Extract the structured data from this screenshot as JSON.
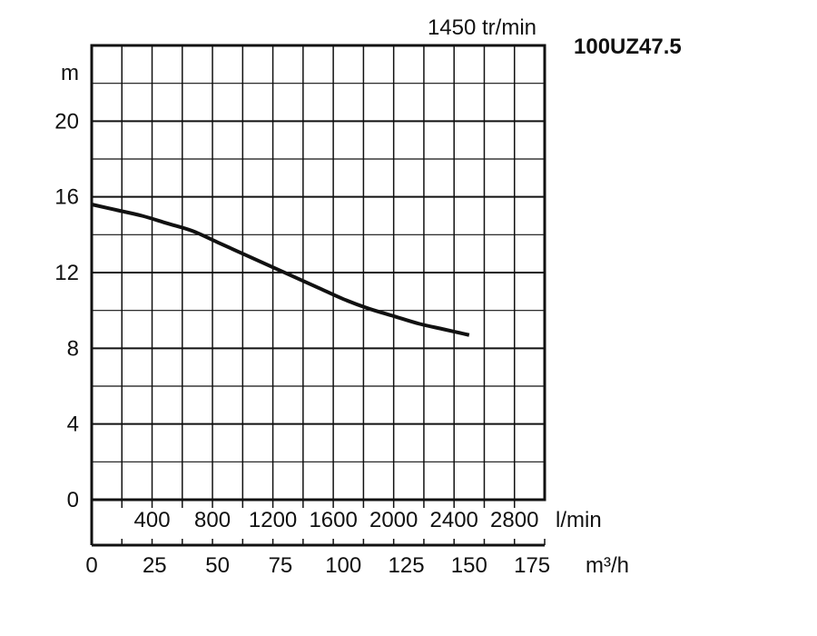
{
  "chart_data": {
    "type": "line",
    "title": "100UZ47.5",
    "subtitle": "1450 tr/min",
    "ylabel": "m",
    "ylim": [
      0,
      24
    ],
    "y_ticks": [
      "0",
      "4",
      "8",
      "12",
      "16",
      "20"
    ],
    "x_flow_lmin_label": "l/min",
    "x_flow_lmin_ticks": [
      "400",
      "800",
      "1200",
      "1600",
      "2000",
      "2400",
      "2800"
    ],
    "xlabel": "m³/h",
    "xlim": [
      0,
      180
    ],
    "x_ticks": [
      "0",
      "25",
      "50",
      "75",
      "100",
      "125",
      "150",
      "175"
    ],
    "grid": true,
    "series": [
      {
        "x": [
          0,
          10,
          20,
          30,
          40,
          50,
          60,
          70,
          80,
          90,
          100,
          110,
          120,
          130,
          140,
          150
        ],
        "y": [
          15.6,
          15.3,
          15.0,
          14.6,
          14.2,
          13.6,
          13.0,
          12.4,
          11.8,
          11.2,
          10.6,
          10.1,
          9.7,
          9.3,
          9.0,
          8.7
        ]
      }
    ]
  }
}
